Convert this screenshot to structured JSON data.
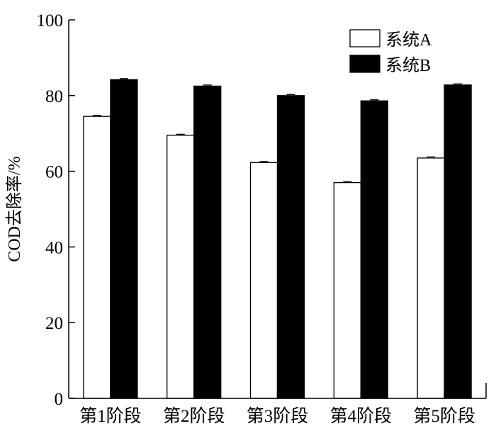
{
  "chart_data": {
    "type": "bar",
    "categories": [
      "第1阶段",
      "第2阶段",
      "第3阶段",
      "第4阶段",
      "第5阶段"
    ],
    "series": [
      {
        "name": "系统A",
        "values": [
          74.5,
          69.5,
          62.3,
          57.0,
          63.5
        ],
        "color": "#ffffff"
      },
      {
        "name": "系统B",
        "values": [
          84.2,
          82.5,
          80.0,
          78.6,
          82.8
        ],
        "color": "#000000"
      }
    ],
    "title": "",
    "xlabel": "",
    "ylabel": "COD去除率/%",
    "ylim": [
      0,
      100
    ],
    "yticks": [
      0,
      20,
      40,
      60,
      80,
      100
    ],
    "ytick_labels": [
      "0",
      "20",
      "40",
      "60",
      "80",
      "100"
    ],
    "grid": false,
    "legend_position": "top-right",
    "error_bars": true
  }
}
